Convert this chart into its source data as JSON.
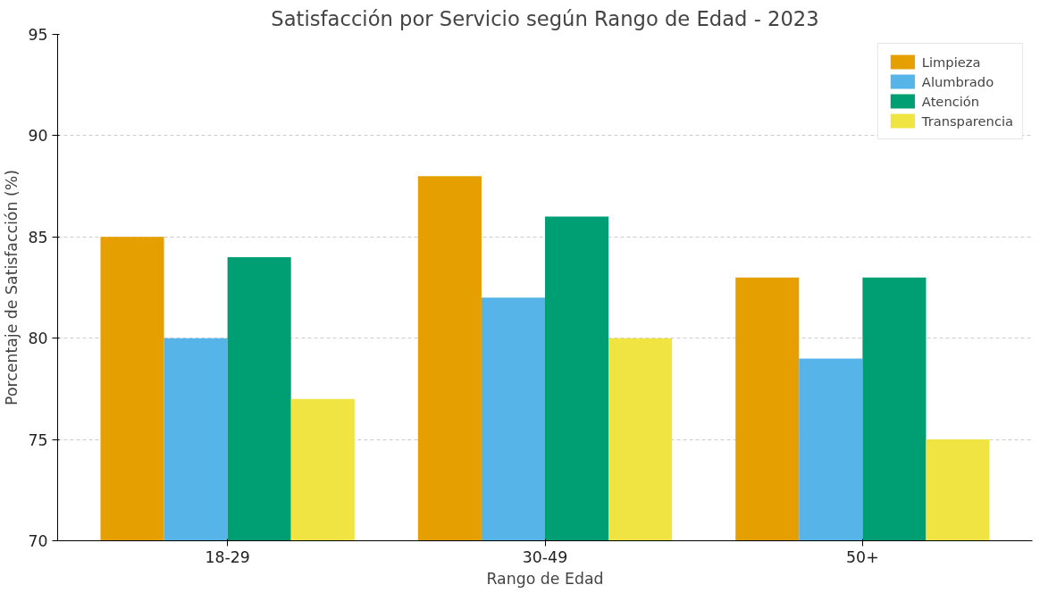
{
  "chart_data": {
    "type": "bar",
    "title": "Satisfacción por Servicio según Rango de Edad - 2023",
    "xlabel": "Rango de Edad",
    "ylabel": "Porcentaje de Satisfacción (%)",
    "categories": [
      "18-29",
      "30-49",
      "50+"
    ],
    "series": [
      {
        "name": "Limpieza",
        "color": "#e69f00",
        "values": [
          85,
          88,
          83
        ]
      },
      {
        "name": "Alumbrado",
        "color": "#56b4e9",
        "values": [
          80,
          82,
          79
        ]
      },
      {
        "name": "Atención",
        "color": "#009e73",
        "values": [
          84,
          86,
          83
        ]
      },
      {
        "name": "Transparencia",
        "color": "#f0e442",
        "values": [
          77,
          80,
          75
        ]
      }
    ],
    "ylim": [
      70,
      95
    ],
    "yticks": [
      70,
      75,
      80,
      85,
      90,
      95
    ],
    "grid": true,
    "legend": "top right"
  }
}
